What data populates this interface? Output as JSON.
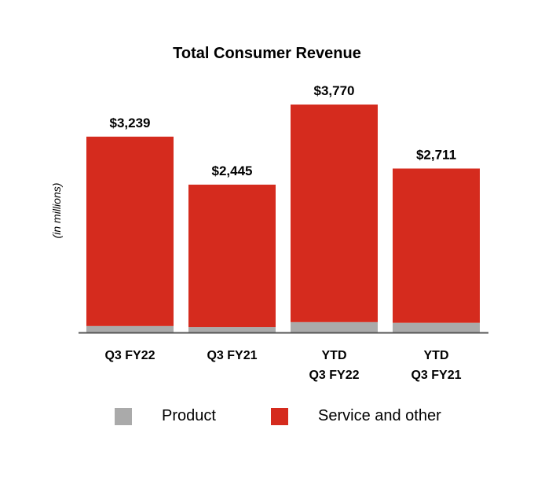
{
  "chart_data": {
    "type": "bar",
    "stacked": true,
    "title": "Total Consumer Revenue",
    "ylabel": "(in millions)",
    "xlabel": "",
    "categories": [
      [
        "Q3 FY22"
      ],
      [
        "Q3 FY21"
      ],
      [
        "YTD",
        "Q3 FY22"
      ],
      [
        "YTD",
        "Q3 FY21"
      ]
    ],
    "totals_labels": [
      "$3,239",
      "$2,445",
      "$3,770",
      "$2,711"
    ],
    "series": [
      {
        "name": "Product",
        "color": "#aaaaaa",
        "values": [
          106,
          90,
          171,
          160
        ]
      },
      {
        "name": "Service and other",
        "color": "#d52b1e",
        "values": [
          3133,
          2355,
          3599,
          2551
        ]
      }
    ],
    "ylim": [
      0,
      3770
    ],
    "grid": false,
    "legend_position": "bottom"
  }
}
